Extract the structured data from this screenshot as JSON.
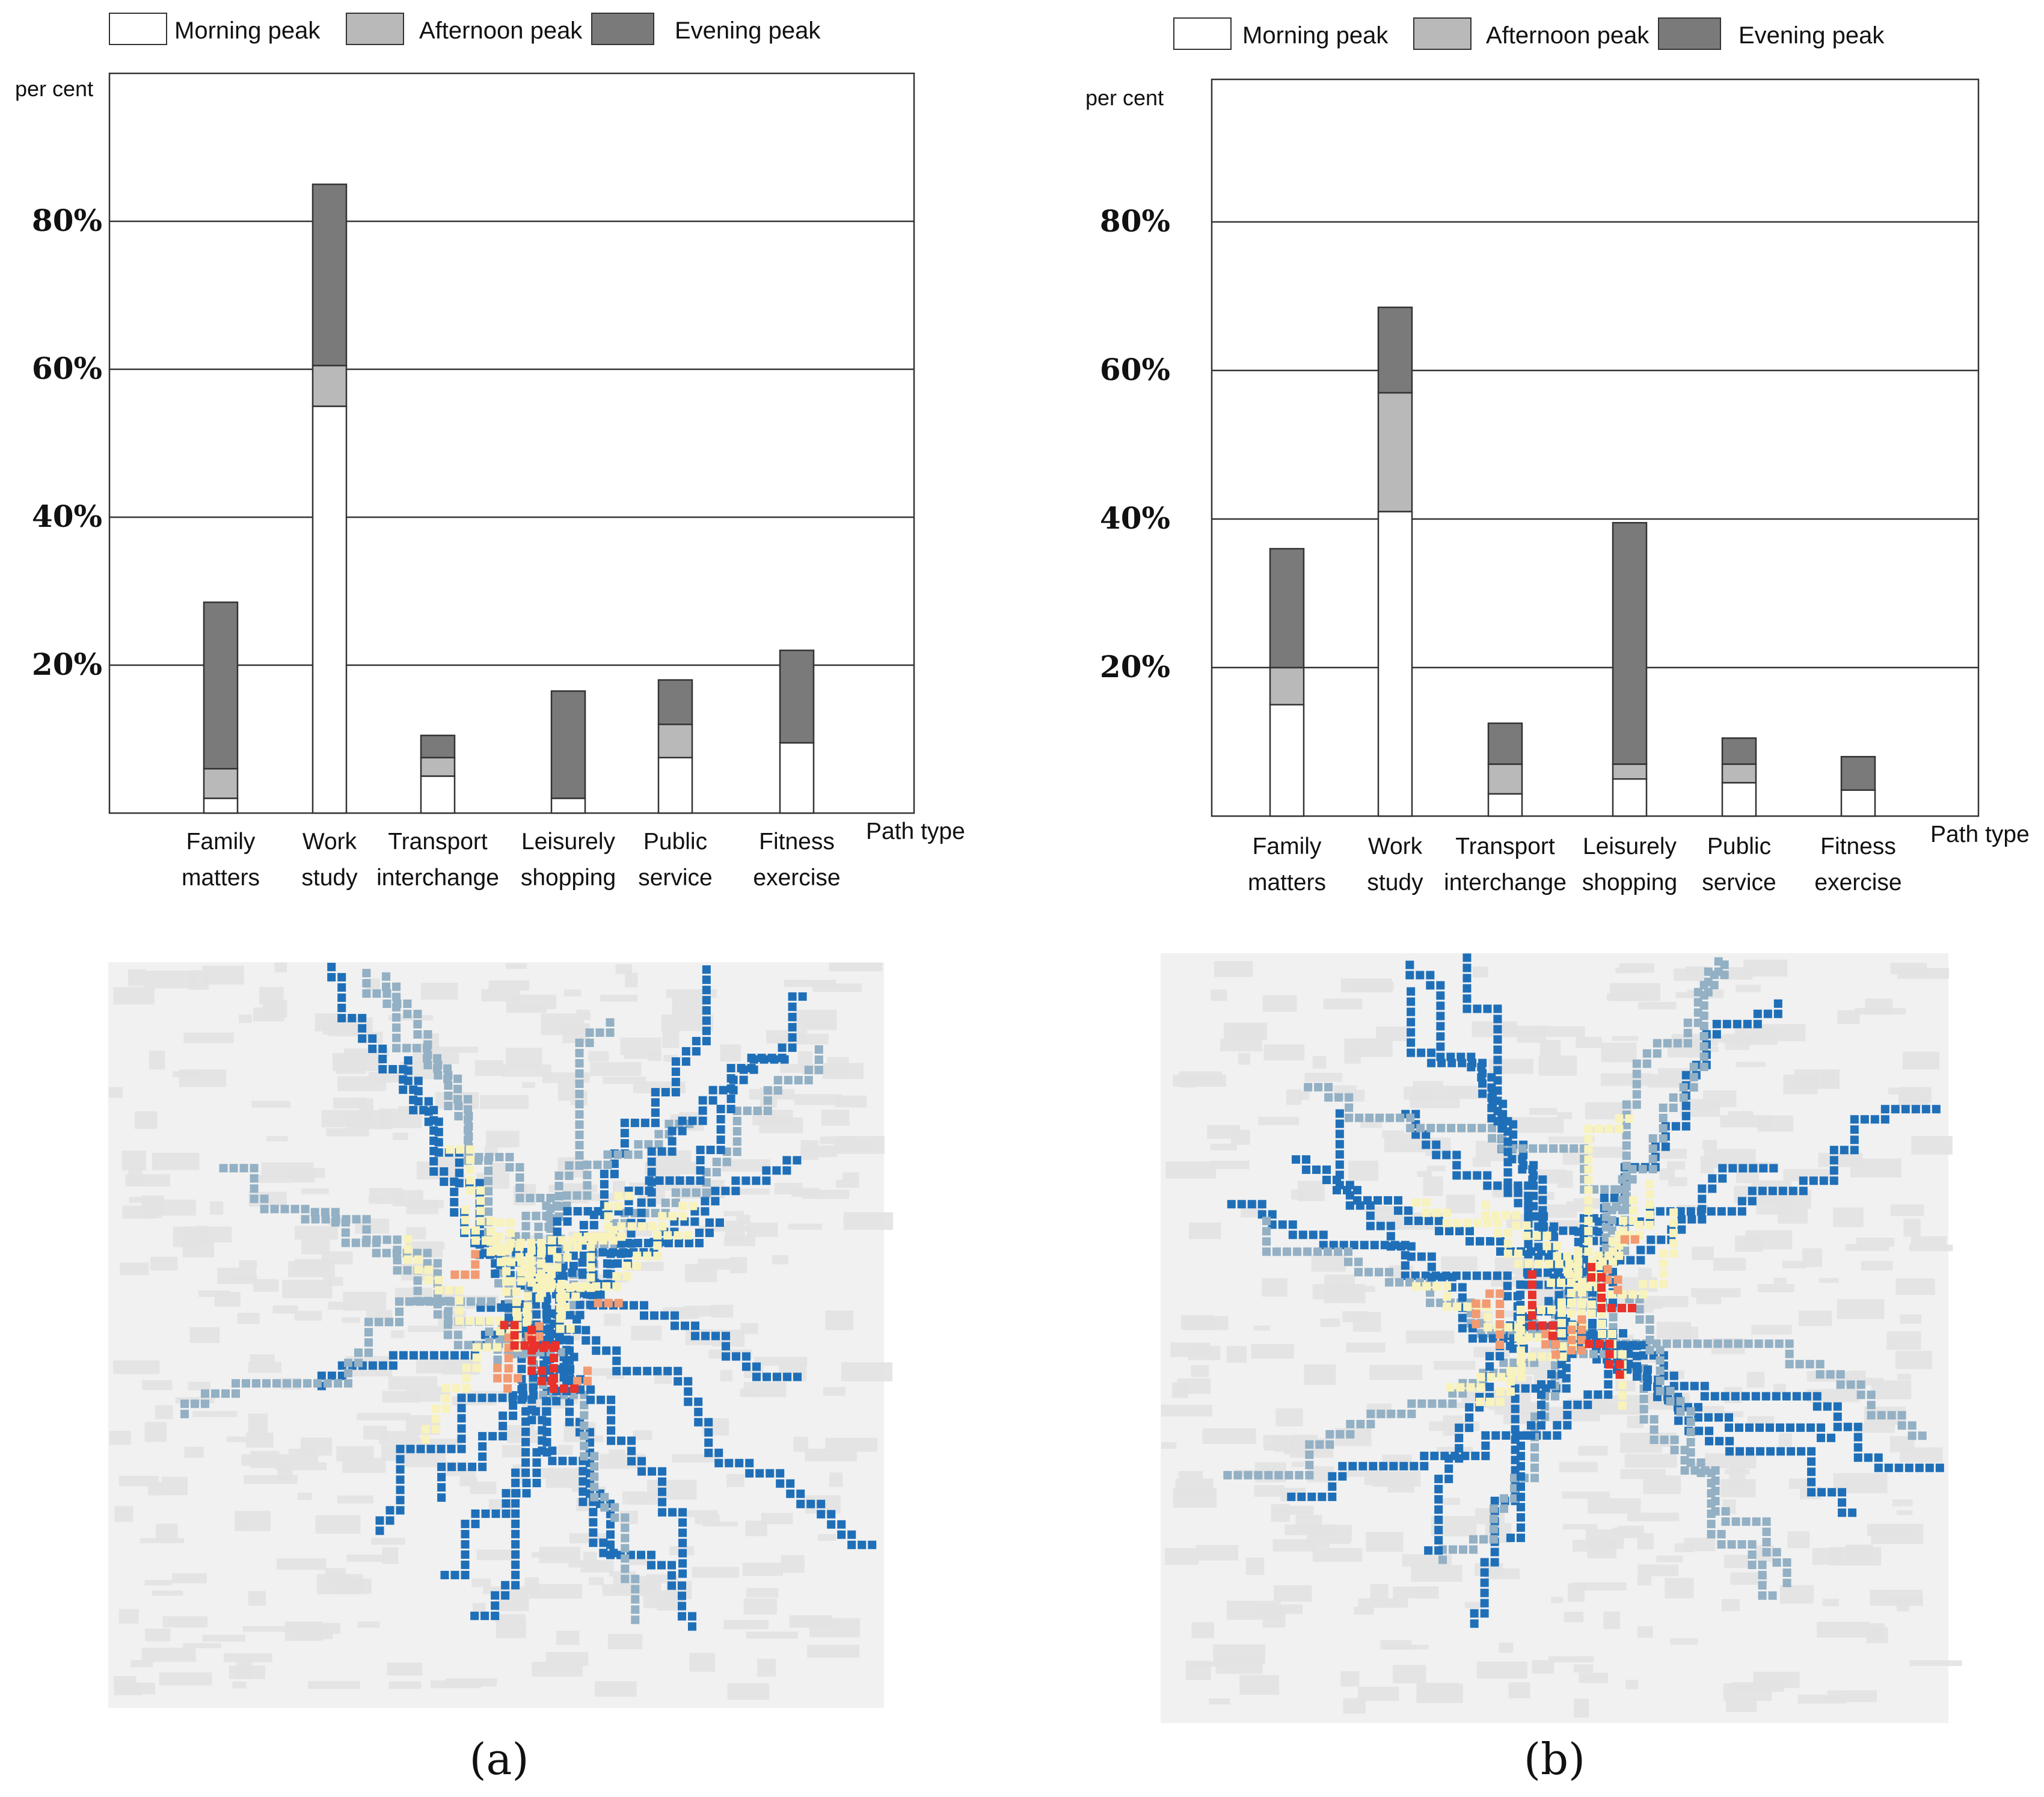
{
  "colors": {
    "morning": "#ffffff",
    "afternoon": "#b9b9b9",
    "evening": "#7a7a7a",
    "stroke": "#333333",
    "grid": "#333333",
    "map_bg": "#f1f1f1",
    "map_faint": "#e2e2e2",
    "map_red": "#e8322b",
    "map_orange": "#f29a72",
    "map_yellow": "#f8f2bc",
    "map_blue": "#1f6fb8",
    "map_grayblue": "#93b0c4"
  },
  "chart_data": [
    {
      "type": "bar",
      "stacked": true,
      "panel": "a",
      "title": "",
      "ylabel": "per cent",
      "xlabel": "Path type",
      "yticks": [
        "20%",
        "40%",
        "60%",
        "80%"
      ],
      "ylim": [
        0,
        100
      ],
      "grid": true,
      "legend": [
        "Morning peak",
        "Afternoon peak",
        "Evening peak"
      ],
      "categories": [
        [
          "Family",
          "matters"
        ],
        [
          "Work",
          "study"
        ],
        [
          "Transport",
          "interchange"
        ],
        [
          "Leisurely",
          "shopping"
        ],
        [
          "Public",
          "service"
        ],
        [
          "Fitness",
          "exercise"
        ]
      ],
      "series": [
        {
          "name": "Morning peak",
          "values": [
            2,
            55,
            5,
            2,
            7.5,
            9.5
          ]
        },
        {
          "name": "Afternoon peak",
          "values": [
            4,
            5.5,
            2.5,
            0,
            4.5,
            0
          ]
        },
        {
          "name": "Evening peak",
          "values": [
            22.5,
            24.5,
            3,
            14.5,
            6,
            12.5
          ]
        }
      ]
    },
    {
      "type": "bar",
      "stacked": true,
      "panel": "b",
      "title": "",
      "ylabel": "per cent",
      "xlabel": "Path type",
      "yticks": [
        "20%",
        "40%",
        "60%",
        "80%"
      ],
      "ylim": [
        0,
        100
      ],
      "grid": true,
      "legend": [
        "Morning peak",
        "Afternoon peak",
        "Evening peak"
      ],
      "categories": [
        [
          "Family",
          "matters"
        ],
        [
          "Work",
          "study"
        ],
        [
          "Transport",
          "interchange"
        ],
        [
          "Leisurely",
          "shopping"
        ],
        [
          "Public",
          "service"
        ],
        [
          "Fitness",
          "exercise"
        ]
      ],
      "series": [
        {
          "name": "Morning peak",
          "values": [
            15,
            41,
            3,
            5,
            4.5,
            3.5
          ]
        },
        {
          "name": "Afternoon peak",
          "values": [
            5,
            16,
            4,
            2,
            2.5,
            0
          ]
        },
        {
          "name": "Evening peak",
          "values": [
            16,
            11.5,
            5.5,
            32.5,
            3.5,
            4.5
          ]
        }
      ]
    }
  ],
  "maps": [
    {
      "panel_label": "(a)"
    },
    {
      "panel_label": "(b)"
    }
  ]
}
